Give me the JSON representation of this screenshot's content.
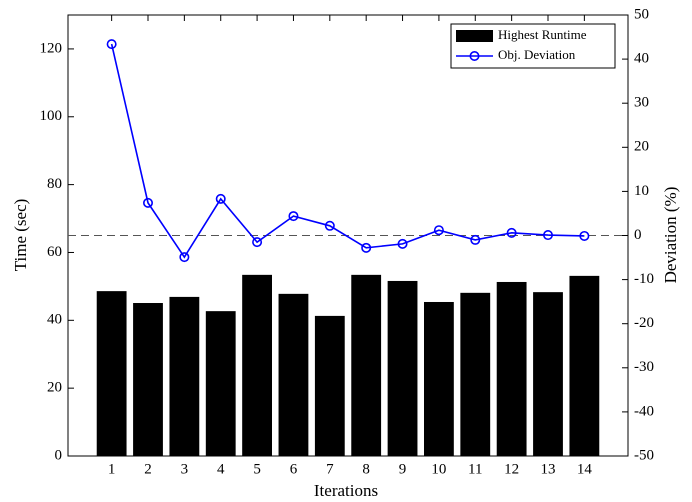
{
  "chart_data": {
    "type": "bar_line",
    "x_label": "Iterations",
    "y_label": "Time (sec)",
    "y2_label": "Deviation (%)",
    "x": [
      1,
      2,
      3,
      4,
      5,
      6,
      7,
      8,
      9,
      10,
      11,
      12,
      13,
      14
    ],
    "xlim": [
      -0.2,
      15.2
    ],
    "xticks": [
      1,
      2,
      3,
      4,
      5,
      6,
      7,
      8,
      9,
      10,
      11,
      12,
      13,
      14
    ],
    "ylim": [
      0,
      130
    ],
    "yticks": [
      0,
      20,
      40,
      60,
      80,
      100,
      120
    ],
    "y2lim": [
      -50,
      50
    ],
    "y2ticks": [
      -50,
      -40,
      -30,
      -20,
      -10,
      0,
      10,
      20,
      30,
      40,
      50
    ],
    "y2_reference": 0,
    "legend": "upper right",
    "series": [
      {
        "name": "Highest Runtime",
        "kind": "bar",
        "color": "#000000",
        "values": [
          48.6,
          45.1,
          46.9,
          42.7,
          53.4,
          47.8,
          41.3,
          53.4,
          51.6,
          45.4,
          48.1,
          51.3,
          48.3,
          53.1
        ]
      },
      {
        "name": "Obj. Deviation",
        "kind": "line",
        "axis": "y2",
        "color": "#0000ff",
        "values": [
          43.4,
          7.4,
          -4.9,
          8.3,
          -1.5,
          4.4,
          2.2,
          -2.8,
          -1.9,
          1.2,
          -1.0,
          0.6,
          0.1,
          -0.1
        ]
      }
    ]
  }
}
